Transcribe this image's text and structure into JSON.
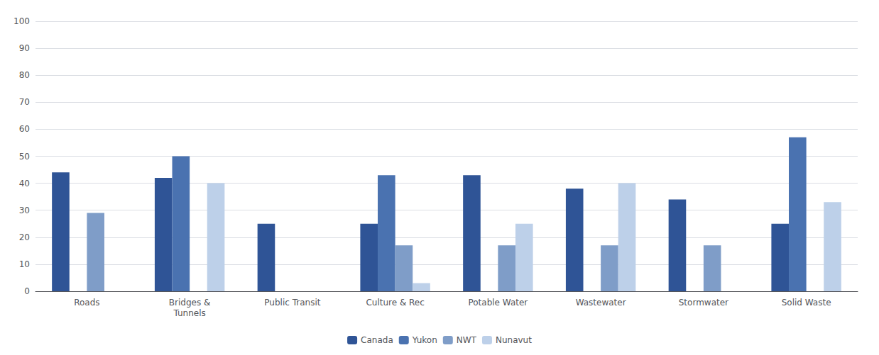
{
  "chart_data": {
    "type": "bar",
    "categories": [
      "Roads",
      "Bridges &\nTunnels",
      "Public Transit",
      "Culture & Rec",
      "Potable Water",
      "Wastewater",
      "Stormwater",
      "Solid Waste"
    ],
    "series": [
      {
        "name": "Canada",
        "color": "#2f5496",
        "values": [
          44,
          42,
          25,
          25,
          43,
          38,
          34,
          25
        ]
      },
      {
        "name": "Yukon",
        "color": "#4a72b0",
        "values": [
          0,
          50,
          0,
          43,
          0,
          0,
          0,
          57
        ]
      },
      {
        "name": "NWT",
        "color": "#7f9dc8",
        "values": [
          29,
          0,
          0,
          17,
          17,
          17,
          17,
          0
        ]
      },
      {
        "name": "Nunavut",
        "color": "#bdd0e9",
        "values": [
          0,
          40,
          0,
          3,
          25,
          40,
          0,
          33
        ]
      }
    ],
    "ylim": [
      0,
      100
    ],
    "yticks": [
      0,
      10,
      20,
      30,
      40,
      50,
      60,
      70,
      80,
      90,
      100
    ],
    "grid": true,
    "legend": "bottom"
  }
}
